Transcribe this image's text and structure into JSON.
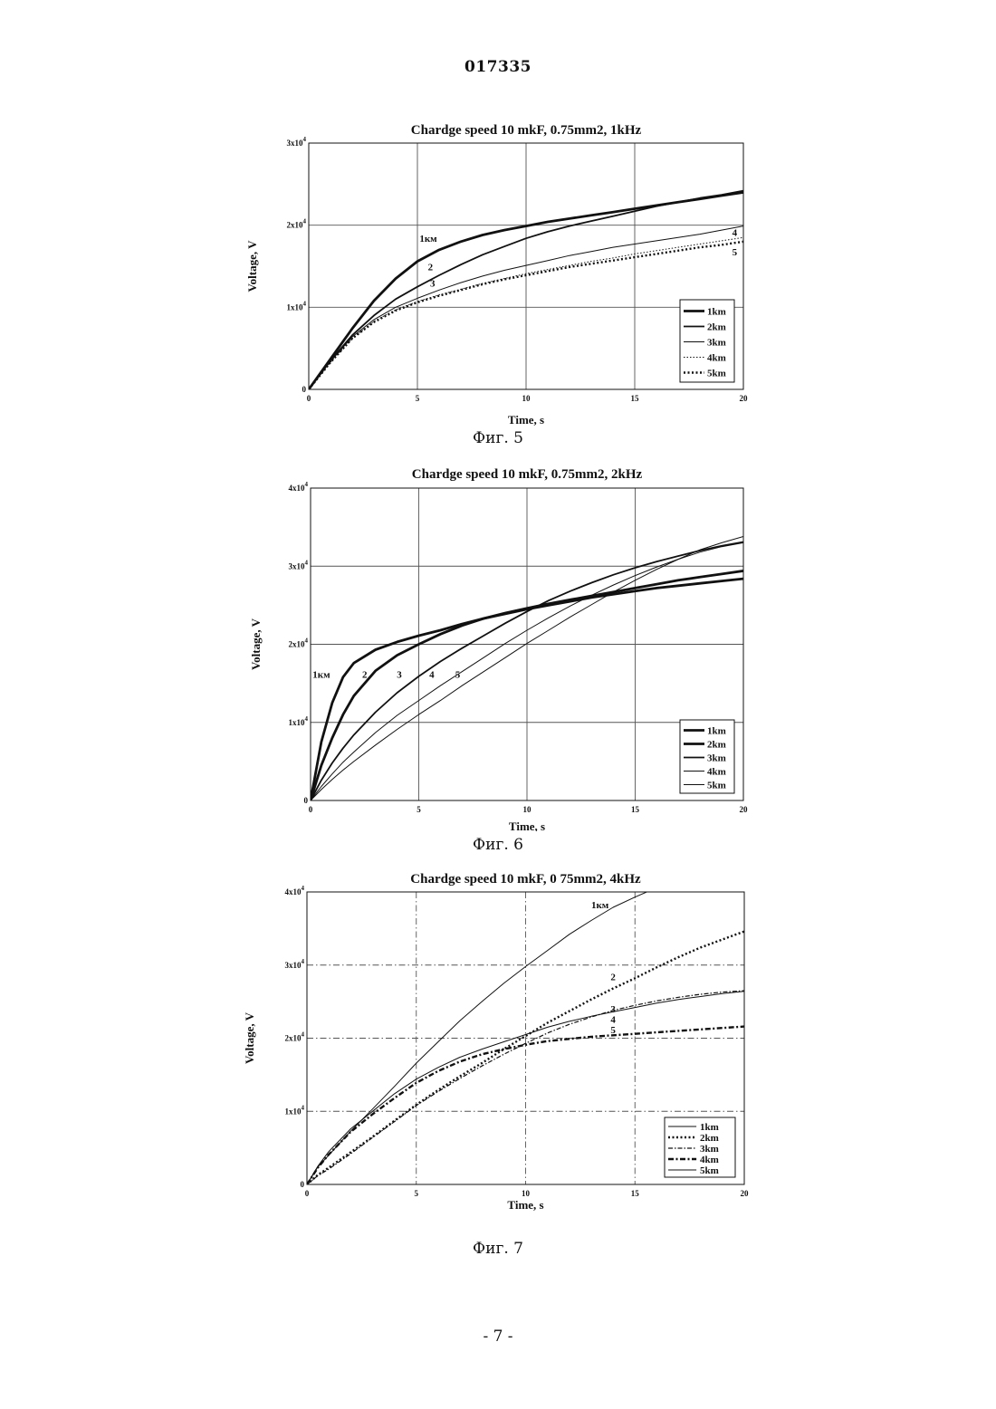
{
  "document": {
    "doc_number": "017335",
    "page_number": "- 7 -"
  },
  "figures": [
    {
      "caption": "Фиг. 5",
      "chart_data": {
        "type": "line",
        "title": "Chardge speed 10 mkF, 0.75mm2, 1kHz",
        "xlabel": "Time, s",
        "ylabel": "Voltage, V",
        "xlim": [
          0,
          20
        ],
        "ylim": [
          0,
          30000
        ],
        "x_ticks": [
          "0",
          "5",
          "10",
          "15",
          "20"
        ],
        "y_ticks": [
          {
            "value": 0,
            "base": "0",
            "exp": ""
          },
          {
            "value": 10000,
            "base": "1x10",
            "exp": "4"
          },
          {
            "value": 20000,
            "base": "2x10",
            "exp": "4"
          },
          {
            "value": 30000,
            "base": "3x10",
            "exp": "4"
          }
        ],
        "grid": true,
        "legend_position": "bottom-right",
        "x": [
          0,
          1,
          2,
          3,
          4,
          5,
          6,
          7,
          8,
          9,
          10,
          11,
          12,
          13,
          14,
          15,
          16,
          17,
          18,
          19,
          20
        ],
        "series": [
          {
            "name": "1km",
            "style": "thick",
            "values": [
              0,
              3700,
              7400,
              10800,
              13500,
              15600,
              17000,
              18000,
              18800,
              19400,
              19900,
              20400,
              20800,
              21200,
              21600,
              22000,
              22400,
              22800,
              23200,
              23600,
              24000
            ]
          },
          {
            "name": "2km",
            "style": "medium",
            "values": [
              0,
              3500,
              6600,
              9000,
              11000,
              12500,
              13900,
              15200,
              16400,
              17400,
              18400,
              19200,
              19900,
              20500,
              21100,
              21700,
              22300,
              22800,
              23300,
              23700,
              24200
            ]
          },
          {
            "name": "3km",
            "style": "thin",
            "values": [
              0,
              3400,
              6400,
              8500,
              10000,
              11100,
              12100,
              13000,
              13800,
              14500,
              15100,
              15700,
              16300,
              16800,
              17300,
              17700,
              18100,
              18500,
              18900,
              19400,
              19900
            ]
          },
          {
            "name": "4km",
            "style": "dotted",
            "values": [
              0,
              3300,
              6200,
              8300,
              9700,
              10700,
              11500,
              12200,
              12900,
              13500,
              14100,
              14600,
              15100,
              15600,
              16000,
              16500,
              16900,
              17300,
              17700,
              18100,
              18500
            ]
          },
          {
            "name": "5km",
            "style": "dotted-thick",
            "values": [
              0,
              3300,
              6200,
              8200,
              9600,
              10600,
              11400,
              12100,
              12800,
              13400,
              13900,
              14400,
              14900,
              15300,
              15700,
              16100,
              16500,
              16900,
              17300,
              17600,
              18000
            ]
          }
        ],
        "annotations": [
          {
            "text": "1км",
            "x": 5.5,
            "y": 18000
          },
          {
            "text": "2",
            "x": 5.6,
            "y": 14500
          },
          {
            "text": "3",
            "x": 5.7,
            "y": 12500
          },
          {
            "text": "4",
            "x": 19.6,
            "y": 18700
          },
          {
            "text": "5",
            "x": 19.6,
            "y": 16300
          }
        ]
      }
    },
    {
      "caption": "Фиг. 6",
      "chart_data": {
        "type": "line",
        "title": "Chardge speed 10 mkF, 0.75mm2, 2kHz",
        "xlabel": "Time, s",
        "ylabel": "Voltage, V",
        "xlim": [
          0,
          20
        ],
        "ylim": [
          0,
          40000
        ],
        "x_ticks": [
          "0",
          "5",
          "10",
          "15",
          "20"
        ],
        "y_ticks": [
          {
            "value": 0,
            "base": "0",
            "exp": ""
          },
          {
            "value": 10000,
            "base": "1x10",
            "exp": "4"
          },
          {
            "value": 20000,
            "base": "2x10",
            "exp": "4"
          },
          {
            "value": 30000,
            "base": "3x10",
            "exp": "4"
          },
          {
            "value": 40000,
            "base": "4x10",
            "exp": "4"
          }
        ],
        "grid": true,
        "legend_position": "bottom-right",
        "x": [
          0,
          0.5,
          1,
          1.5,
          2,
          3,
          4,
          5,
          6,
          7,
          8,
          9,
          10,
          11,
          12,
          13,
          14,
          15,
          16,
          17,
          18,
          19,
          20
        ],
        "series": [
          {
            "name": "1km",
            "style": "thick",
            "values": [
              0,
              7500,
              12500,
              15800,
              17600,
              19300,
              20300,
              21100,
              21800,
              22600,
              23300,
              23900,
              24500,
              25000,
              25500,
              26000,
              26400,
              26800,
              27200,
              27500,
              27800,
              28100,
              28400
            ]
          },
          {
            "name": "2km",
            "style": "thick",
            "values": [
              0,
              4500,
              8000,
              11000,
              13400,
              16600,
              18600,
              20000,
              21300,
              22400,
              23300,
              24000,
              24600,
              25200,
              25700,
              26200,
              26700,
              27200,
              27700,
              28200,
              28600,
              29000,
              29400
            ]
          },
          {
            "name": "3km",
            "style": "medium",
            "values": [
              0,
              2600,
              4800,
              6700,
              8400,
              11300,
              13800,
              15900,
              17800,
              19500,
              21100,
              22700,
              24200,
              25600,
              26800,
              27900,
              28900,
              29800,
              30600,
              31300,
              32000,
              32600,
              33100
            ]
          },
          {
            "name": "4km",
            "style": "thin",
            "values": [
              0,
              1800,
              3400,
              4900,
              6200,
              8700,
              10900,
              12800,
              14700,
              16500,
              18300,
              20100,
              21800,
              23400,
              24900,
              26300,
              27600,
              28800,
              29900,
              30900,
              31800,
              32500,
              33000
            ]
          },
          {
            "name": "5km",
            "style": "thin",
            "values": [
              0,
              1400,
              2700,
              3900,
              5000,
              7100,
              9100,
              11000,
              12800,
              14700,
              16500,
              18300,
              20100,
              21800,
              23500,
              25100,
              26700,
              28200,
              29600,
              30900,
              32100,
              33000,
              33800
            ]
          }
        ],
        "annotations": [
          {
            "text": "1км",
            "x": 0.5,
            "y": 15700
          },
          {
            "text": "2",
            "x": 2.5,
            "y": 15700
          },
          {
            "text": "3",
            "x": 4.1,
            "y": 15700
          },
          {
            "text": "4",
            "x": 5.6,
            "y": 15700
          },
          {
            "text": "5",
            "x": 6.8,
            "y": 15700
          }
        ]
      }
    },
    {
      "caption": "Фиг. 7",
      "chart_data": {
        "type": "line",
        "title": "Chardge speed 10 mkF, 0 75mm2, 4kHz",
        "xlabel": "Time, s",
        "ylabel": "Voltage, V",
        "xlim": [
          0,
          20
        ],
        "ylim": [
          0,
          40000
        ],
        "x_ticks": [
          "0",
          "5",
          "10",
          "15",
          "20"
        ],
        "y_ticks": [
          {
            "value": 0,
            "base": "0",
            "exp": ""
          },
          {
            "value": 10000,
            "base": "1x10",
            "exp": "4"
          },
          {
            "value": 20000,
            "base": "2x10",
            "exp": "4"
          },
          {
            "value": 30000,
            "base": "3x10",
            "exp": "4"
          },
          {
            "value": 40000,
            "base": "4x10",
            "exp": "4"
          }
        ],
        "grid": true,
        "legend_position": "bottom-right",
        "x": [
          0,
          0.5,
          1,
          2,
          3,
          4,
          5,
          6,
          7,
          8,
          9,
          10,
          11,
          12,
          13,
          14,
          15,
          16,
          17,
          18,
          19,
          20
        ],
        "series": [
          {
            "name": "1km",
            "style": "thin",
            "values": [
              0,
              2400,
              4000,
              7300,
              10300,
              13400,
              16600,
              19500,
              22400,
              25000,
              27500,
              29800,
              32000,
              34200,
              36100,
              37900,
              39300,
              40600,
              41500,
              42200,
              42800,
              43300
            ]
          },
          {
            "name": "2km",
            "style": "dotted-thick",
            "values": [
              0,
              1300,
              2300,
              4400,
              6500,
              8700,
              10900,
              12900,
              14800,
              16600,
              18500,
              20300,
              22100,
              23700,
              25300,
              26800,
              28200,
              29700,
              31100,
              32400,
              33500,
              34600
            ]
          },
          {
            "name": "3km",
            "style": "dashdot",
            "values": [
              0,
              1200,
              2100,
              4200,
              6400,
              8600,
              10800,
              12700,
              14500,
              16200,
              17800,
              19300,
              20700,
              21900,
              22900,
              23800,
              24500,
              25100,
              25600,
              26000,
              26300,
              26500
            ]
          },
          {
            "name": "4km",
            "style": "dashdot-thick",
            "values": [
              0,
              2300,
              4100,
              7200,
              9600,
              11800,
              13900,
              15500,
              16800,
              17800,
              18500,
              19100,
              19600,
              19900,
              20200,
              20400,
              20600,
              20800,
              21000,
              21200,
              21400,
              21600
            ]
          },
          {
            "name": "5km",
            "style": "thin",
            "values": [
              0,
              2500,
              4500,
              7600,
              10000,
              12400,
              14400,
              16000,
              17400,
              18500,
              19500,
              20500,
              21500,
              22300,
              23000,
              23600,
              24200,
              24800,
              25300,
              25700,
              26100,
              26400
            ]
          }
        ],
        "annotations": [
          {
            "text": "1км",
            "x": 13.4,
            "y": 37800
          },
          {
            "text": "2",
            "x": 14.0,
            "y": 27900
          },
          {
            "text": "3",
            "x": 14.0,
            "y": 23500
          },
          {
            "text": "4",
            "x": 14.0,
            "y": 22100
          },
          {
            "text": "5",
            "x": 14.0,
            "y": 20700
          }
        ]
      }
    }
  ]
}
